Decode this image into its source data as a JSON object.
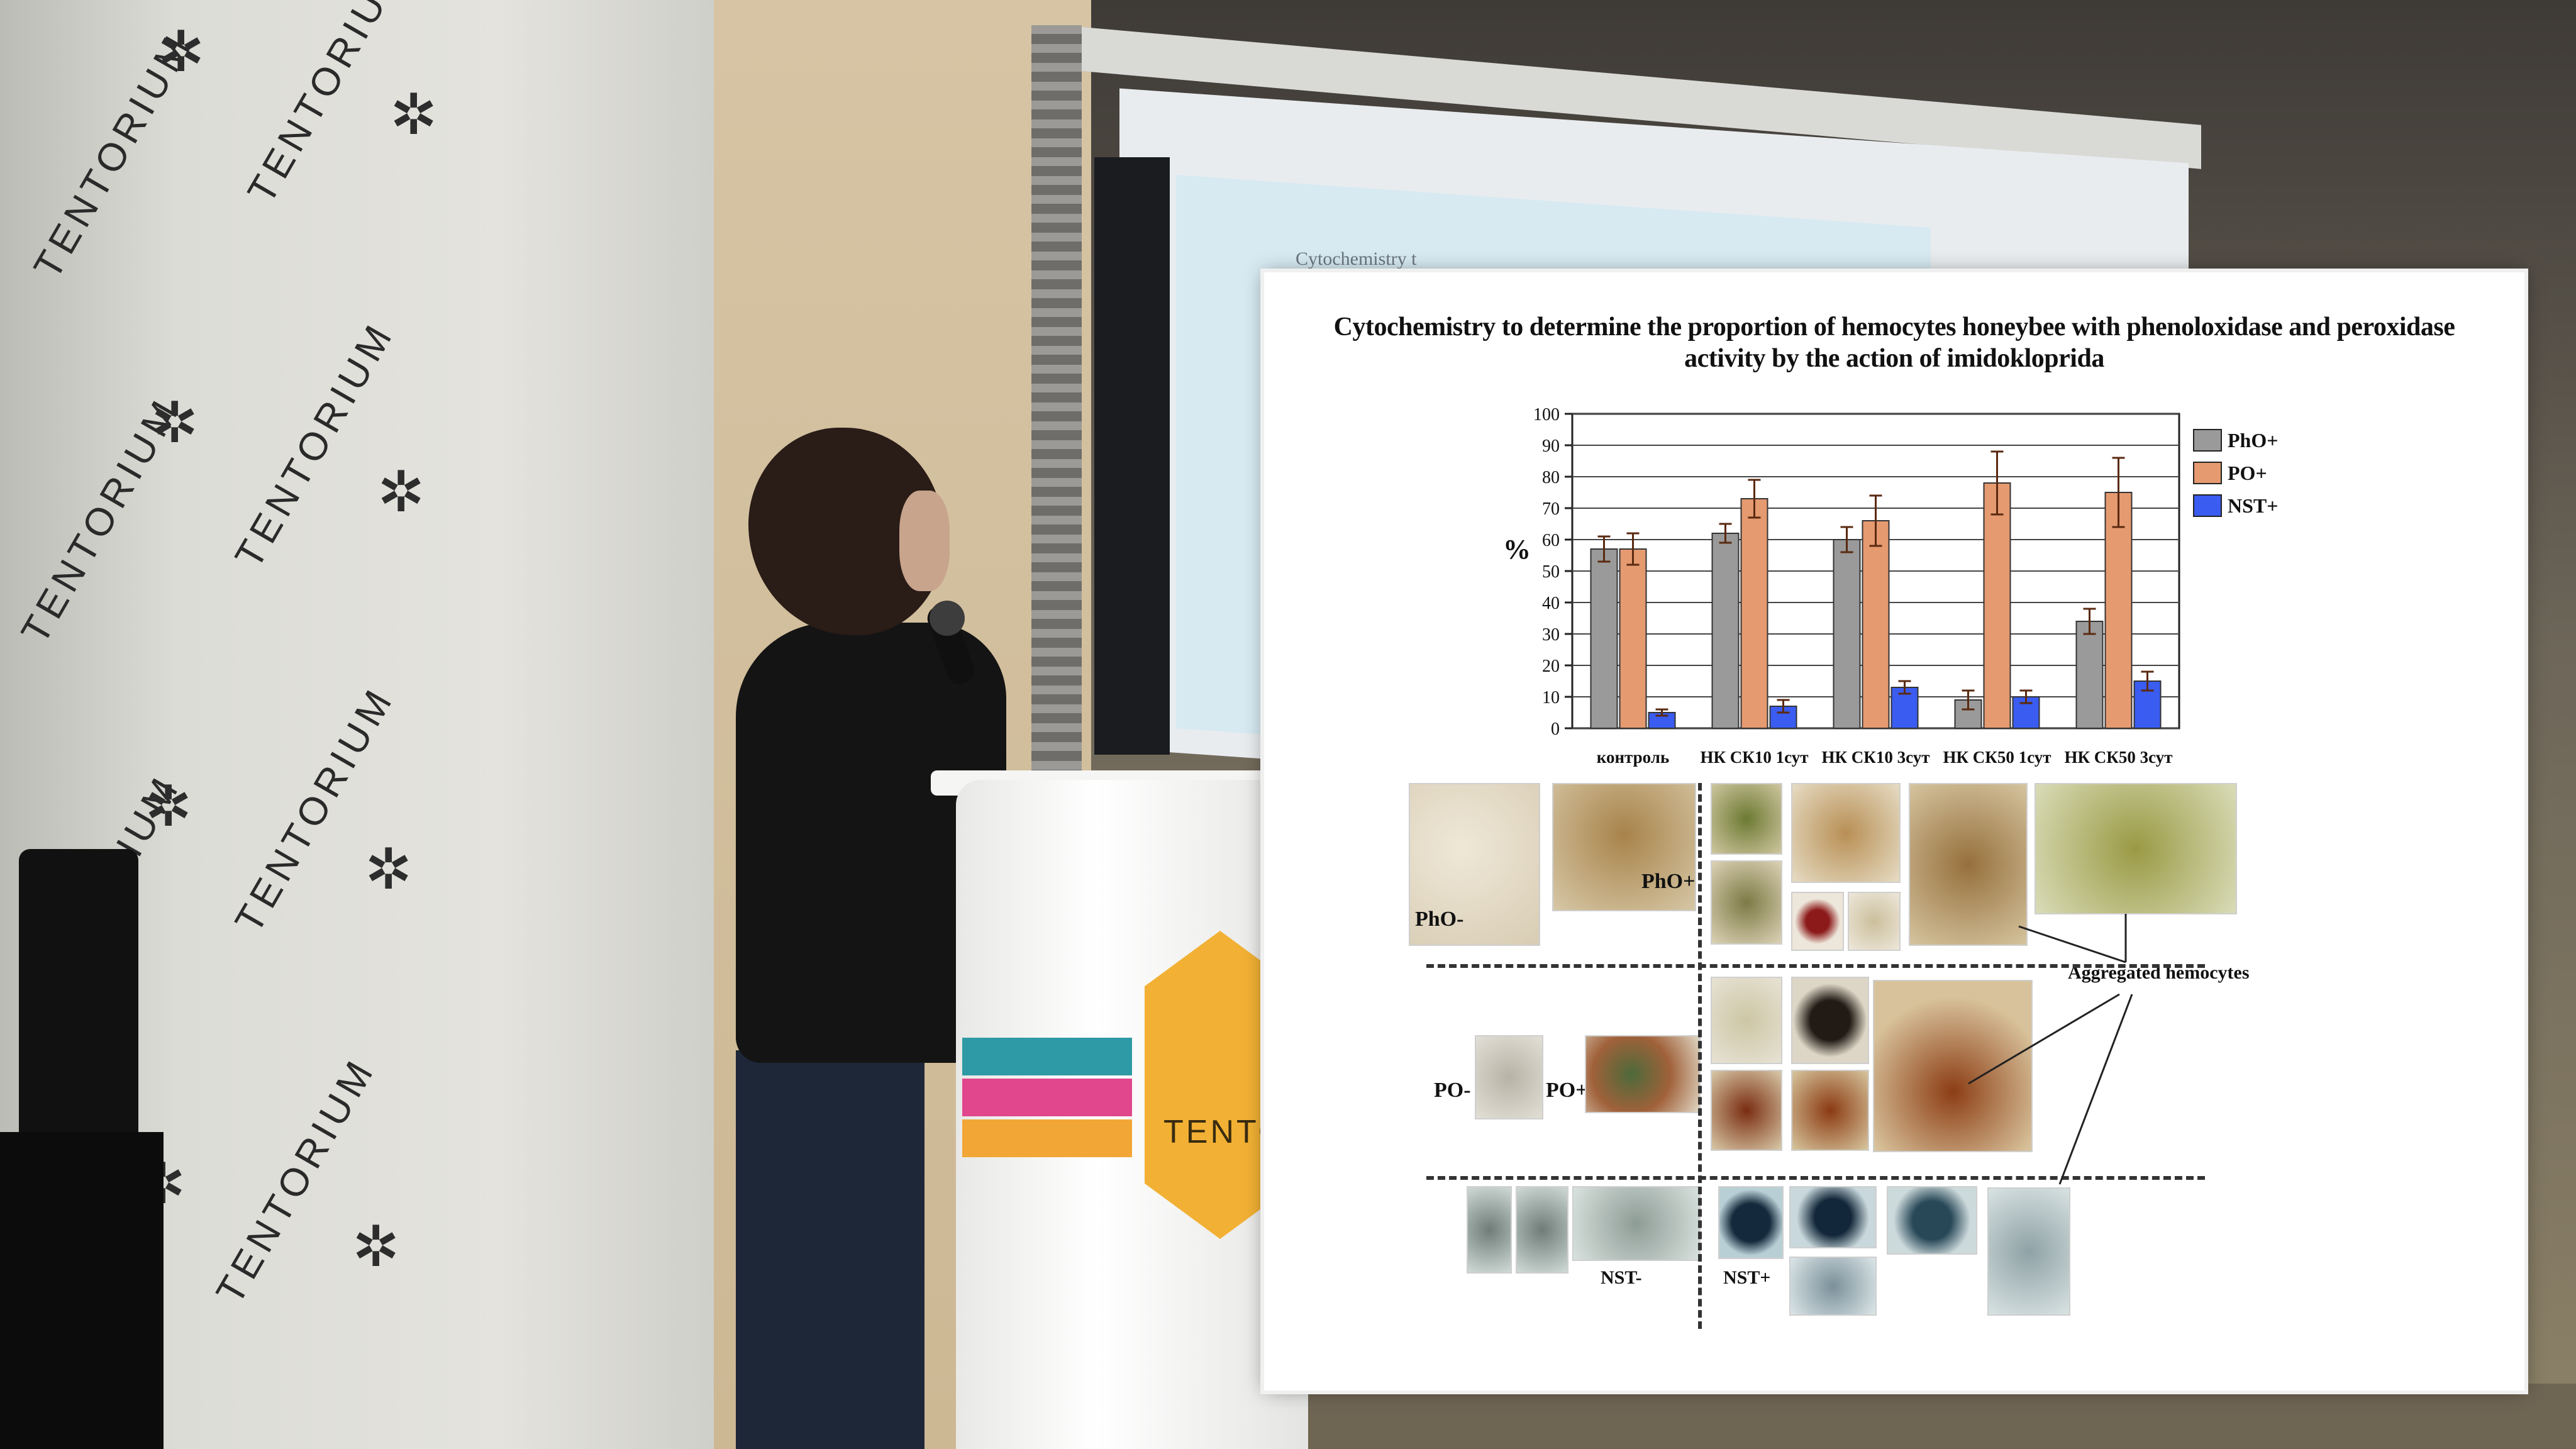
{
  "scene": {
    "banner_brand": "TENTORIUM",
    "podium_brand": "TENTORI",
    "screen_text": "Cytochemistry t",
    "colors": {
      "brand_yellow": "#f2b134",
      "stripe_teal": "#2e9aa5",
      "stripe_pink": "#e0478c",
      "stripe_orange": "#f2a636"
    }
  },
  "slide": {
    "title": "Cytochemistry to determine the proportion of hemocytes honeybee with phenoloxidase and peroxidase activity by the action of imidokloprida",
    "panel_labels": {
      "pho_neg": "PhO-",
      "pho_pos": "PhO+",
      "po_neg": "PO-",
      "po_pos": "PO+",
      "nst_neg": "NST-",
      "nst_pos": "NST+",
      "aggregated": "Aggregated hemocytes"
    }
  },
  "chart_data": {
    "type": "bar",
    "categories": [
      "контроль",
      "НК СК10 1сут",
      "НК СК10 3сут",
      "НК СК50 1сут",
      "НК СК50 3сут"
    ],
    "series": [
      {
        "name": "PhO+",
        "color": "#9a9a9a",
        "values": [
          57,
          62,
          60,
          9,
          34
        ],
        "errors": [
          4,
          3,
          4,
          3,
          4
        ]
      },
      {
        "name": "PO+",
        "color": "#e59a70",
        "values": [
          57,
          73,
          66,
          78,
          75
        ],
        "errors": [
          5,
          6,
          8,
          10,
          11
        ]
      },
      {
        "name": "NST+",
        "color": "#3a5cf0",
        "values": [
          5,
          7,
          13,
          10,
          15
        ],
        "errors": [
          1,
          2,
          2,
          2,
          3
        ]
      }
    ],
    "ylabel": "%",
    "yticks": [
      0,
      10,
      20,
      30,
      40,
      50,
      60,
      70,
      80,
      90,
      100
    ],
    "ylim": [
      0,
      100
    ],
    "grid": true,
    "legend": "right"
  }
}
